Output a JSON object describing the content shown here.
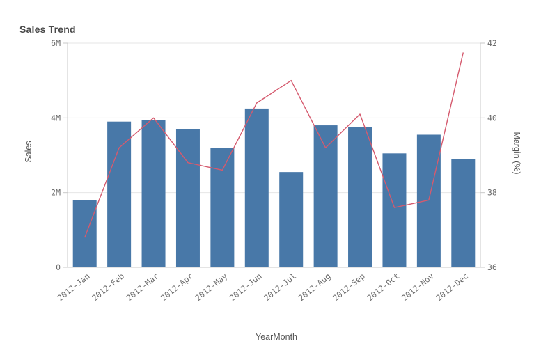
{
  "chart_data": {
    "type": "combo",
    "title": "Sales Trend",
    "xlabel": "YearMonth",
    "grid": true,
    "legend": "none",
    "categories": [
      "2012-Jan",
      "2012-Feb",
      "2012-Mar",
      "2012-Apr",
      "2012-May",
      "2012-Jun",
      "2012-Jul",
      "2012-Aug",
      "2012-Sep",
      "2012-Oct",
      "2012-Nov",
      "2012-Dec"
    ],
    "series": [
      {
        "name": "Sales",
        "type": "bar",
        "axis": "left",
        "color": "#4878a8",
        "values_millions": [
          1.8,
          3.9,
          3.95,
          3.7,
          3.2,
          4.25,
          2.55,
          3.8,
          3.75,
          3.05,
          3.55,
          2.9
        ]
      },
      {
        "name": "Margin (%)",
        "type": "line",
        "axis": "right",
        "color": "#d55a6e",
        "values": [
          36.8,
          39.2,
          40.0,
          38.8,
          38.6,
          40.4,
          41.0,
          39.2,
          40.1,
          37.6,
          37.8,
          41.75
        ]
      }
    ],
    "y_left": {
      "label": "Sales",
      "min_m": 0,
      "max_m": 6,
      "tick_labels": [
        "6M",
        "4M",
        "2M",
        "0"
      ],
      "tick_values_m": [
        6,
        4,
        2,
        0
      ]
    },
    "y_right": {
      "label": "Margin (%)",
      "min": 36,
      "max": 42,
      "tick_labels": [
        "42",
        "40",
        "38",
        "36"
      ],
      "tick_values": [
        42,
        40,
        38,
        36
      ]
    }
  },
  "colors": {
    "background": "#ffffff",
    "title": "#4a4a4a",
    "axis_title": "#555555",
    "tick_label": "#6b6b6b",
    "gridline": "#e6e6e6",
    "axis_line": "#c9c9c9",
    "bar": "#4878a8",
    "line": "#d55a6e"
  }
}
